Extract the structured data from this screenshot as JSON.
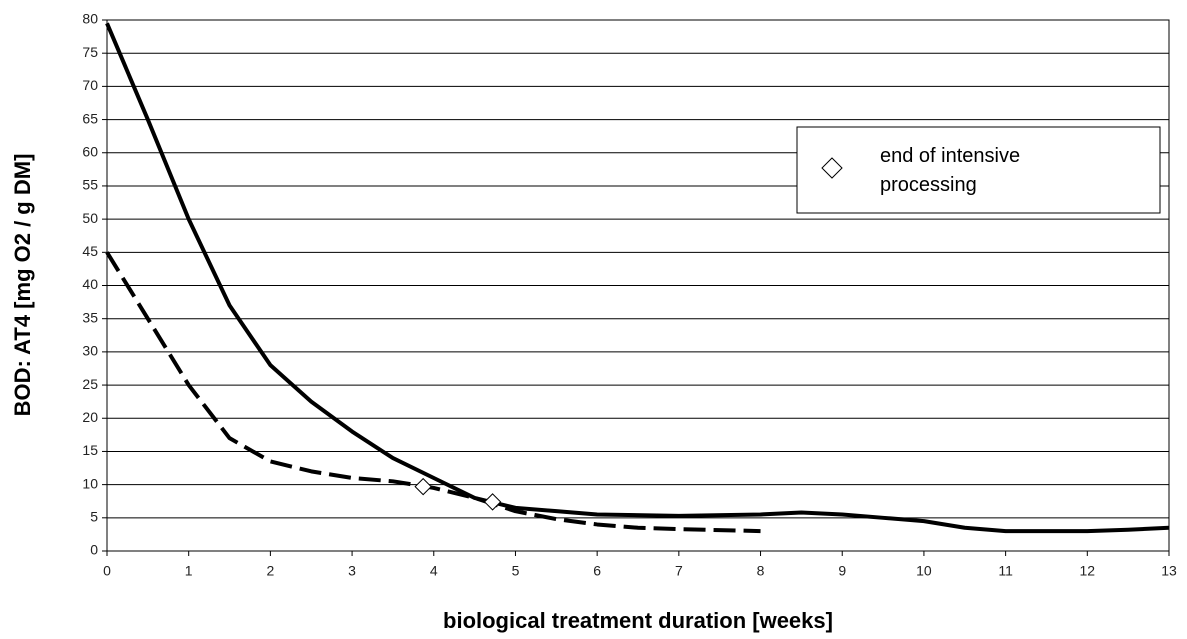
{
  "chart_data": {
    "type": "line",
    "x_label": "biological treatment duration [weeks]",
    "y_label": "BOD:  AT4 [mg O2 / g DM]",
    "xlim": [
      0,
      13
    ],
    "xticks": [
      0,
      1,
      2,
      3,
      4,
      5,
      6,
      7,
      8,
      9,
      10,
      11,
      12,
      13
    ],
    "ylim": [
      0,
      80
    ],
    "yticks": [
      0,
      5,
      10,
      15,
      20,
      25,
      30,
      35,
      40,
      45,
      50,
      55,
      60,
      65,
      70,
      75,
      80
    ],
    "grid": true,
    "legend_position": "upper right",
    "series": [
      {
        "color": "#000000",
        "line_style": "solid",
        "x": [
          0,
          0.5,
          1,
          1.5,
          2,
          2.5,
          3,
          3.5,
          4,
          4.5,
          5,
          5.5,
          6,
          7,
          8,
          8.5,
          9,
          9.5,
          10,
          10.5,
          11,
          12,
          12.5,
          13
        ],
        "values": [
          79.5,
          65,
          50,
          37,
          28,
          22.5,
          18,
          14,
          11,
          8,
          6.5,
          6,
          5.5,
          5.3,
          5.5,
          5.8,
          5.5,
          5,
          4.5,
          3.5,
          3,
          3,
          3.2,
          3.5
        ]
      },
      {
        "color": "#000000",
        "line_style": "dashed",
        "x": [
          0,
          0.5,
          1,
          1.5,
          2,
          2.5,
          3,
          3.5,
          4,
          4.5,
          5,
          5.5,
          6,
          6.5,
          7,
          8
        ],
        "values": [
          45,
          35,
          25,
          17,
          13.5,
          12,
          11,
          10.5,
          9.5,
          8,
          6,
          4.8,
          4,
          3.5,
          3.3,
          3
        ]
      },
      {
        "name": "end of intensive processing",
        "color": "#ffffff",
        "marker": "diamond",
        "x": [
          3.87,
          4.72
        ],
        "values": [
          9.7,
          7.4
        ]
      }
    ]
  }
}
